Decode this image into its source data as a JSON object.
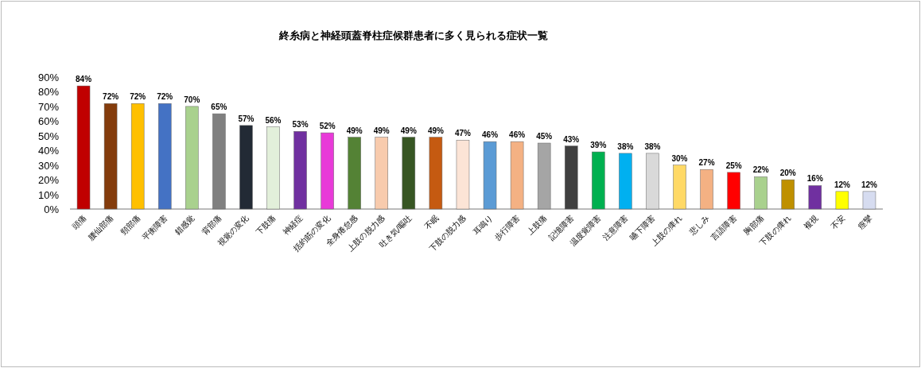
{
  "chart_data": {
    "type": "bar",
    "title": "終糸病と神経頭蓋脊柱症候群患者に多く見られる症状一覧",
    "categories": [
      "頭痛",
      "腰仙部痛",
      "頸部痛",
      "平衡障害",
      "錯感覚",
      "背部痛",
      "視覚の変化",
      "下肢痛",
      "神経症",
      "括約筋の変化",
      "全身倦怠感",
      "上肢の脱力感",
      "吐き気/嘔吐",
      "不眠",
      "下肢の脱力感",
      "耳鳴り",
      "歩行障害",
      "上肢痛",
      "記憶障害",
      "温度覚障害",
      "注意障害",
      "嚥下障害",
      "上肢の痺れ",
      "悲しみ",
      "言語障害",
      "胸部痛",
      "下肢の痺れ",
      "複視",
      "不安",
      "痙攣"
    ],
    "values": [
      84,
      72,
      72,
      72,
      70,
      65,
      57,
      56,
      53,
      52,
      49,
      49,
      49,
      49,
      47,
      46,
      46,
      45,
      43,
      39,
      38,
      38,
      30,
      27,
      25,
      22,
      20,
      16,
      12,
      12
    ],
    "value_labels": [
      "84%",
      "72%",
      "72%",
      "72%",
      "70%",
      "65%",
      "57%",
      "56%",
      "53%",
      "52%",
      "49%",
      "49%",
      "49%",
      "49%",
      "47%",
      "46%",
      "46%",
      "45%",
      "43%",
      "39%",
      "38%",
      "38%",
      "30%",
      "27%",
      "25%",
      "22%",
      "20%",
      "16%",
      "12%",
      "12%"
    ],
    "colors": [
      "#c00000",
      "#843c0c",
      "#ffc000",
      "#4472c4",
      "#a9d18e",
      "#808080",
      "#222a35",
      "#e2efda",
      "#7030a0",
      "#e83ad8",
      "#548235",
      "#f8cbad",
      "#375623",
      "#c55a11",
      "#fce4d6",
      "#5b9bd5",
      "#f4b183",
      "#a5a5a5",
      "#404040",
      "#00b050",
      "#00b0f0",
      "#d9d9d9",
      "#ffd966",
      "#f4b183",
      "#ff0000",
      "#a9d18e",
      "#bf9000",
      "#7030a0",
      "#ffff00",
      "#d6dcf0"
    ],
    "ylim": [
      0,
      90
    ],
    "yticks": [
      {
        "value": 0,
        "label": "0%"
      },
      {
        "value": 10,
        "label": "10%"
      },
      {
        "value": 20,
        "label": "20%"
      },
      {
        "value": 30,
        "label": "30%"
      },
      {
        "value": 40,
        "label": "40%"
      },
      {
        "value": 50,
        "label": "50%"
      },
      {
        "value": 60,
        "label": "60%"
      },
      {
        "value": 70,
        "label": "70%"
      },
      {
        "value": 80,
        "label": "80%"
      },
      {
        "value": 90,
        "label": "90%"
      }
    ],
    "grid": false
  }
}
